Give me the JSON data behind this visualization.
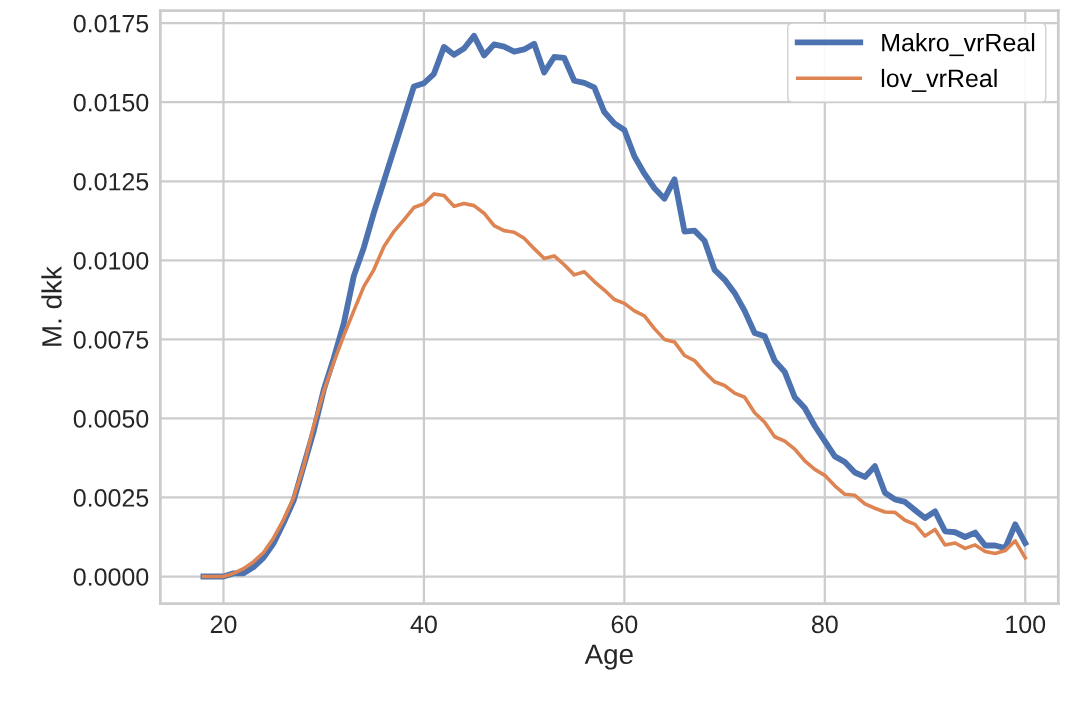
{
  "chart_data": {
    "type": "line",
    "xlabel": "Age",
    "ylabel": "M. dkk",
    "xlim": [
      13.7,
      103.3
    ],
    "ylim": [
      -0.00086,
      0.0179
    ],
    "xticks": [
      20,
      40,
      60,
      80,
      100
    ],
    "yticks": [
      {
        "value": 0,
        "label": "0.0000"
      },
      {
        "value": 0.0025,
        "label": "0.0025"
      },
      {
        "value": 0.005,
        "label": "0.0050"
      },
      {
        "value": 0.0075,
        "label": "0.0075"
      },
      {
        "value": 0.01,
        "label": "0.0100"
      },
      {
        "value": 0.0125,
        "label": "0.0125"
      },
      {
        "value": 0.015,
        "label": "0.0150"
      },
      {
        "value": 0.0175,
        "label": "0.0175"
      }
    ],
    "x": [
      18,
      19,
      20,
      21,
      22,
      23,
      24,
      25,
      26,
      27,
      28,
      29,
      30,
      31,
      32,
      33,
      34,
      35,
      36,
      37,
      38,
      39,
      40,
      41,
      42,
      43,
      44,
      45,
      46,
      47,
      48,
      49,
      50,
      51,
      52,
      53,
      54,
      55,
      56,
      57,
      58,
      59,
      60,
      61,
      62,
      63,
      64,
      65,
      66,
      67,
      68,
      69,
      70,
      71,
      72,
      73,
      74,
      75,
      76,
      77,
      78,
      79,
      80,
      81,
      82,
      83,
      84,
      85,
      86,
      87,
      88,
      89,
      90,
      91,
      92,
      93,
      94,
      95,
      96,
      97,
      98,
      99,
      100
    ],
    "series": [
      {
        "name": "Makro_vrReal",
        "color": "#4c72b0",
        "values": [
          0,
          0,
          0,
          0.0001,
          0.0001,
          0.0003,
          0.0006,
          0.00105,
          0.0017,
          0.0024,
          0.0035,
          0.0046,
          0.0059,
          0.0069,
          0.008,
          0.0095,
          0.0104,
          0.0115,
          0.0125,
          0.0135,
          0.0145,
          0.0155,
          0.0156,
          0.0159,
          0.01675,
          0.0165,
          0.0167,
          0.0171,
          0.01648,
          0.01683,
          0.01676,
          0.0166,
          0.01667,
          0.01685,
          0.01594,
          0.01643,
          0.0164,
          0.01568,
          0.01561,
          0.01547,
          0.01469,
          0.01433,
          0.01412,
          0.01329,
          0.01274,
          0.01228,
          0.01195,
          0.01256,
          0.01091,
          0.01094,
          0.01062,
          0.0097,
          0.00939,
          0.00897,
          0.0084,
          0.0077,
          0.0076,
          0.00683,
          0.00647,
          0.00567,
          0.00533,
          0.00476,
          0.00428,
          0.0038,
          0.00362,
          0.00329,
          0.00315,
          0.00349,
          0.00265,
          0.00244,
          0.00236,
          0.0021,
          0.00185,
          0.00206,
          0.00143,
          0.0014,
          0.00125,
          0.00139,
          0.00098,
          0.00098,
          0.0009,
          0.00165,
          0.00106
        ]
      },
      {
        "name": "lov_vrReal",
        "color": "#dd8452",
        "values": [
          0,
          0,
          0,
          0.0001,
          0.00025,
          0.00047,
          0.00076,
          0.00122,
          0.0018,
          0.0025,
          0.00349,
          0.00476,
          0.00586,
          0.00677,
          0.00762,
          0.0084,
          0.00917,
          0.0097,
          0.01043,
          0.01091,
          0.01128,
          0.01167,
          0.01179,
          0.0121,
          0.01205,
          0.01171,
          0.0118,
          0.01173,
          0.01149,
          0.0111,
          0.01094,
          0.01089,
          0.0107,
          0.01037,
          0.01006,
          0.01014,
          0.00986,
          0.00954,
          0.00964,
          0.00933,
          0.00906,
          0.00876,
          0.00864,
          0.0084,
          0.00824,
          0.00784,
          0.0075,
          0.00742,
          0.00699,
          0.00683,
          0.00647,
          0.00616,
          0.00604,
          0.0058,
          0.00567,
          0.00518,
          0.00488,
          0.00442,
          0.00428,
          0.00403,
          0.00366,
          0.00339,
          0.0032,
          0.00287,
          0.0026,
          0.00257,
          0.0023,
          0.00216,
          0.00204,
          0.00203,
          0.00178,
          0.00165,
          0.00128,
          0.00149,
          0.001,
          0.00106,
          0.00089,
          0.001,
          0.00079,
          0.00073,
          0.00082,
          0.00113,
          0.00059
        ]
      }
    ],
    "grid": true,
    "legend": "top right",
    "marker": "none",
    "line_style": "solid"
  }
}
